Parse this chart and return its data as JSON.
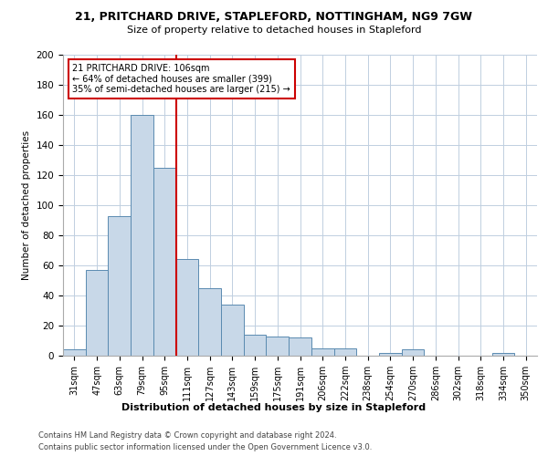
{
  "title1": "21, PRITCHARD DRIVE, STAPLEFORD, NOTTINGHAM, NG9 7GW",
  "title2": "Size of property relative to detached houses in Stapleford",
  "xlabel": "Distribution of detached houses by size in Stapleford",
  "ylabel": "Number of detached properties",
  "categories": [
    "31sqm",
    "47sqm",
    "63sqm",
    "79sqm",
    "95sqm",
    "111sqm",
    "127sqm",
    "143sqm",
    "159sqm",
    "175sqm",
    "191sqm",
    "206sqm",
    "222sqm",
    "238sqm",
    "254sqm",
    "270sqm",
    "286sqm",
    "302sqm",
    "318sqm",
    "334sqm",
    "350sqm"
  ],
  "values": [
    4,
    57,
    93,
    160,
    125,
    64,
    45,
    34,
    14,
    13,
    12,
    5,
    5,
    0,
    2,
    4,
    0,
    0,
    0,
    2,
    0
  ],
  "bar_color": "#c8d8e8",
  "bar_edge_color": "#5a8ab0",
  "highlight_line_color": "#cc0000",
  "annotation_text": "21 PRITCHARD DRIVE: 106sqm\n← 64% of detached houses are smaller (399)\n35% of semi-detached houses are larger (215) →",
  "annotation_box_color": "#cc0000",
  "annotation_box_fill": "#ffffff",
  "ylim": [
    0,
    200
  ],
  "yticks": [
    0,
    20,
    40,
    60,
    80,
    100,
    120,
    140,
    160,
    180,
    200
  ],
  "footer1": "Contains HM Land Registry data © Crown copyright and database right 2024.",
  "footer2": "Contains public sector information licensed under the Open Government Licence v3.0.",
  "bg_color": "#ffffff",
  "grid_color": "#c0cfe0"
}
